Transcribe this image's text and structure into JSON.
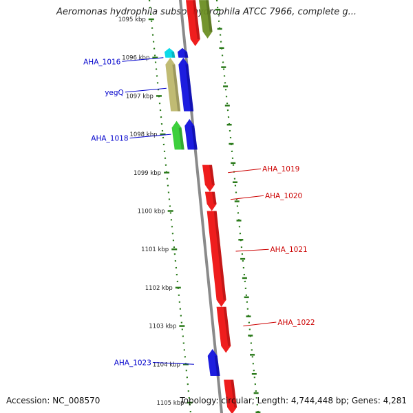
{
  "title": "Aeromonas hydrophila subsp. hydrophila ATCC 7966, complete g...",
  "footer": {
    "accession": "Accession: NC_008570",
    "summary": "Topology: circular; Length: 4,744,448 bp; Genes: 4,281"
  },
  "colors": {
    "forward_label": "#0000cc",
    "reverse_label": "#cc0000",
    "backbone": "#8a8a8a",
    "tick": "#2a7a1a"
  },
  "scale": {
    "unit": "kbp",
    "ticks": [
      {
        "kbp": 1095,
        "label": "1095 kbp"
      },
      {
        "kbp": 1096,
        "label": "1096 kbp"
      },
      {
        "kbp": 1097,
        "label": "1097 kbp"
      },
      {
        "kbp": 1098,
        "label": "1098 kbp"
      },
      {
        "kbp": 1099,
        "label": "1099 kbp"
      },
      {
        "kbp": 1100,
        "label": "1100 kbp"
      },
      {
        "kbp": 1101,
        "label": "1101 kbp"
      },
      {
        "kbp": 1102,
        "label": "1102 kbp"
      },
      {
        "kbp": 1103,
        "label": "1103 kbp"
      },
      {
        "kbp": 1104,
        "label": "1104 kbp"
      },
      {
        "kbp": 1105,
        "label": "1105 kbp"
      }
    ]
  },
  "genes": [
    {
      "strand": "reverse",
      "start_kbp": 1094.5,
      "end_kbp": 1095.7,
      "color": "#ee1111"
    },
    {
      "strand": "reverse",
      "start_kbp": 1094.5,
      "end_kbp": 1095.5,
      "color": "#6b8e23"
    },
    {
      "strand": "forward",
      "start_kbp": 1095.75,
      "end_kbp": 1096.0,
      "color": "#00d8e8"
    },
    {
      "strand": "forward",
      "start_kbp": 1095.75,
      "end_kbp": 1096.0,
      "color": "#1111dd"
    },
    {
      "strand": "forward",
      "start_kbp": 1096.0,
      "end_kbp": 1097.4,
      "color": "#bdb76b"
    },
    {
      "strand": "forward",
      "start_kbp": 1096.0,
      "end_kbp": 1097.4,
      "color": "#1111dd"
    },
    {
      "strand": "forward",
      "start_kbp": 1097.65,
      "end_kbp": 1098.4,
      "color": "#33cc33"
    },
    {
      "strand": "forward",
      "start_kbp": 1097.6,
      "end_kbp": 1098.4,
      "color": "#1111dd"
    },
    {
      "strand": "reverse",
      "start_kbp": 1098.8,
      "end_kbp": 1099.5,
      "color": "#ee1111"
    },
    {
      "strand": "reverse",
      "start_kbp": 1099.5,
      "end_kbp": 1100.0,
      "color": "#ee1111"
    },
    {
      "strand": "reverse",
      "start_kbp": 1100.0,
      "end_kbp": 1102.5,
      "color": "#ee1111"
    },
    {
      "strand": "reverse",
      "start_kbp": 1102.5,
      "end_kbp": 1103.7,
      "color": "#ee1111"
    },
    {
      "strand": "forward",
      "start_kbp": 1103.6,
      "end_kbp": 1104.3,
      "color": "#1111dd"
    },
    {
      "strand": "reverse",
      "start_kbp": 1104.4,
      "end_kbp": 1105.3,
      "color": "#ee1111"
    }
  ],
  "labels": [
    {
      "text": "AHA_1016",
      "side": "left",
      "kbp": 1096.1,
      "target_kbp": 1096.0
    },
    {
      "text": "yegQ",
      "side": "left",
      "kbp": 1096.9,
      "target_kbp": 1096.8
    },
    {
      "text": "AHA_1018",
      "side": "left",
      "kbp": 1098.1,
      "target_kbp": 1098.0
    },
    {
      "text": "AHA_1019",
      "side": "right",
      "kbp": 1098.9,
      "target_kbp": 1099.0
    },
    {
      "text": "AHA_1020",
      "side": "right",
      "kbp": 1099.6,
      "target_kbp": 1099.7
    },
    {
      "text": "AHA_1021",
      "side": "right",
      "kbp": 1101.0,
      "target_kbp": 1101.05
    },
    {
      "text": "AHA_1022",
      "side": "right",
      "kbp": 1102.9,
      "target_kbp": 1103.0
    },
    {
      "text": "AHA_1023",
      "side": "left",
      "kbp": 1103.95,
      "target_kbp": 1104.0
    }
  ]
}
